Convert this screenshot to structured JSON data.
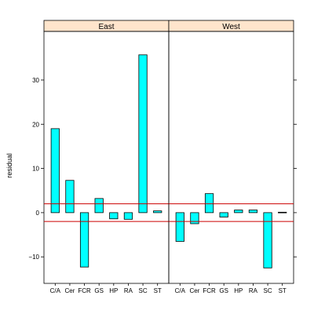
{
  "chart_data": {
    "type": "bar",
    "ylabel": "residual",
    "ylim": [
      -16,
      41
    ],
    "yticks": [
      -10,
      0,
      10,
      20,
      30
    ],
    "categories": [
      "C/A",
      "Cer",
      "FCR",
      "GS",
      "HP",
      "RA",
      "SC",
      "ST"
    ],
    "reference_lines": [
      2,
      -2
    ],
    "panels": [
      {
        "name": "East",
        "values": [
          19,
          7.3,
          -12.3,
          3.2,
          -1.4,
          -1.5,
          35.7,
          0.4
        ]
      },
      {
        "name": "West",
        "values": [
          -6.5,
          -2.5,
          4.3,
          -1.0,
          0.6,
          0.6,
          -12.5,
          0.1
        ]
      }
    ],
    "colors": {
      "bar_fill": "#00FFFF",
      "strip_fill": "#FFE5CC",
      "reference_line": "#CC0000"
    }
  }
}
